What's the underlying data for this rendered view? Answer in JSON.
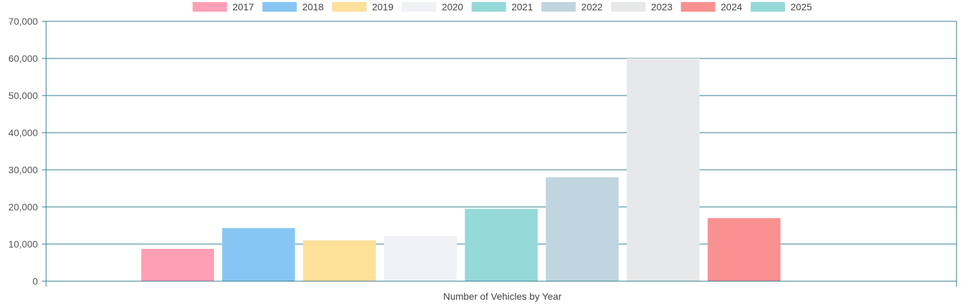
{
  "chart_data": {
    "type": "bar",
    "title": "",
    "xlabel": "Number of Vehicles by Year",
    "ylabel": "",
    "ylim": [
      0,
      70000
    ],
    "y_ticks": [
      0,
      10000,
      20000,
      30000,
      40000,
      50000,
      60000,
      70000
    ],
    "y_tick_labels": [
      "0",
      "10,000",
      "20,000",
      "30,000",
      "40,000",
      "50,000",
      "60,000",
      "70,000"
    ],
    "grid": true,
    "legend_position": "top",
    "series": [
      {
        "name": "2017",
        "color": "#ff9fb6",
        "value": 8700
      },
      {
        "name": "2018",
        "color": "#87c6f4",
        "value": 14300
      },
      {
        "name": "2019",
        "color": "#fde09a",
        "value": 11000
      },
      {
        "name": "2020",
        "color": "#f0f2f5",
        "value": 12200
      },
      {
        "name": "2021",
        "color": "#95d9d9",
        "value": 19500
      },
      {
        "name": "2022",
        "color": "#c1d5e1",
        "value": 28000
      },
      {
        "name": "2023",
        "color": "#e7e8e9",
        "value": 60000
      },
      {
        "name": "2024",
        "color": "#f99191",
        "value": 17000
      },
      {
        "name": "2025",
        "color": "#95d9d9",
        "value": 0
      }
    ],
    "colors": {
      "axis": "#2f7891",
      "grid": "#2f7891",
      "tick_text": "#555555",
      "legend_text": "#444444"
    }
  }
}
